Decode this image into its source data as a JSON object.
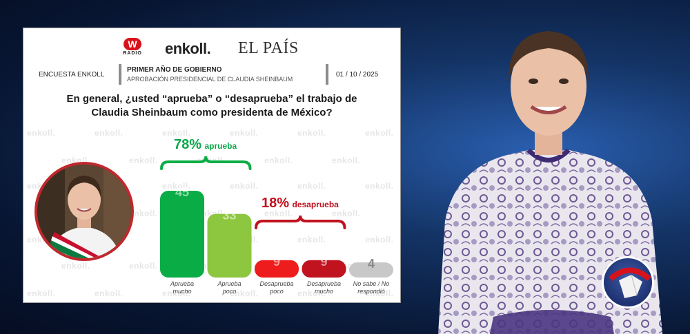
{
  "header": {
    "logo_radio_mark": "W",
    "logo_radio_text": "RADIO",
    "logo_enkoll": "enkoll.",
    "logo_elpais": "EL PAÍS",
    "survey_label": "ENCUESTA ENKOLL",
    "title_line1": "PRIMER AÑO DE GOBIERNO",
    "title_line2": "APROBACIÓN PRESIDENCIAL DE CLAUDIA SHEINBAUM",
    "date": "01 / 10 / 2025"
  },
  "question": {
    "line1": "En general, ¿usted “aprueba” o “desaprueba” el trabajo de",
    "line2": "Claudia Sheinbaum como presidenta de México?"
  },
  "watermark": "enkoll.",
  "colors": {
    "approve_strong": "#0aad45",
    "approve_weak": "#8dc63f",
    "disapprove_weak": "#ee1c1c",
    "disapprove_strong": "#c1121f",
    "no_answer": "#c8c8c8",
    "approve_label": "#0aa84a",
    "disapprove_label": "#c0111d"
  },
  "chart_data": {
    "type": "bar",
    "categories": [
      "Aprueba mucho",
      "Aprueba poco",
      "Desaprueba poco",
      "Desaprueba mucho",
      "No sabe / No respondió"
    ],
    "category_lines": [
      [
        "Aprueba",
        "mucho"
      ],
      [
        "Aprueba",
        "poco"
      ],
      [
        "Desaprueba",
        "poco"
      ],
      [
        "Desaprueba",
        "mucho"
      ],
      [
        "No sabe / No",
        "respondió"
      ]
    ],
    "values": [
      45,
      33,
      9,
      9,
      4
    ],
    "value_labels": [
      "45",
      "33",
      "9",
      "9",
      "4"
    ],
    "ylim": [
      0,
      50
    ],
    "groups": [
      {
        "pct": "78%",
        "label": "aprueba",
        "bars": [
          0,
          1
        ]
      },
      {
        "pct": "18%",
        "label": "desaprueba",
        "bars": [
          2,
          3
        ]
      }
    ]
  }
}
